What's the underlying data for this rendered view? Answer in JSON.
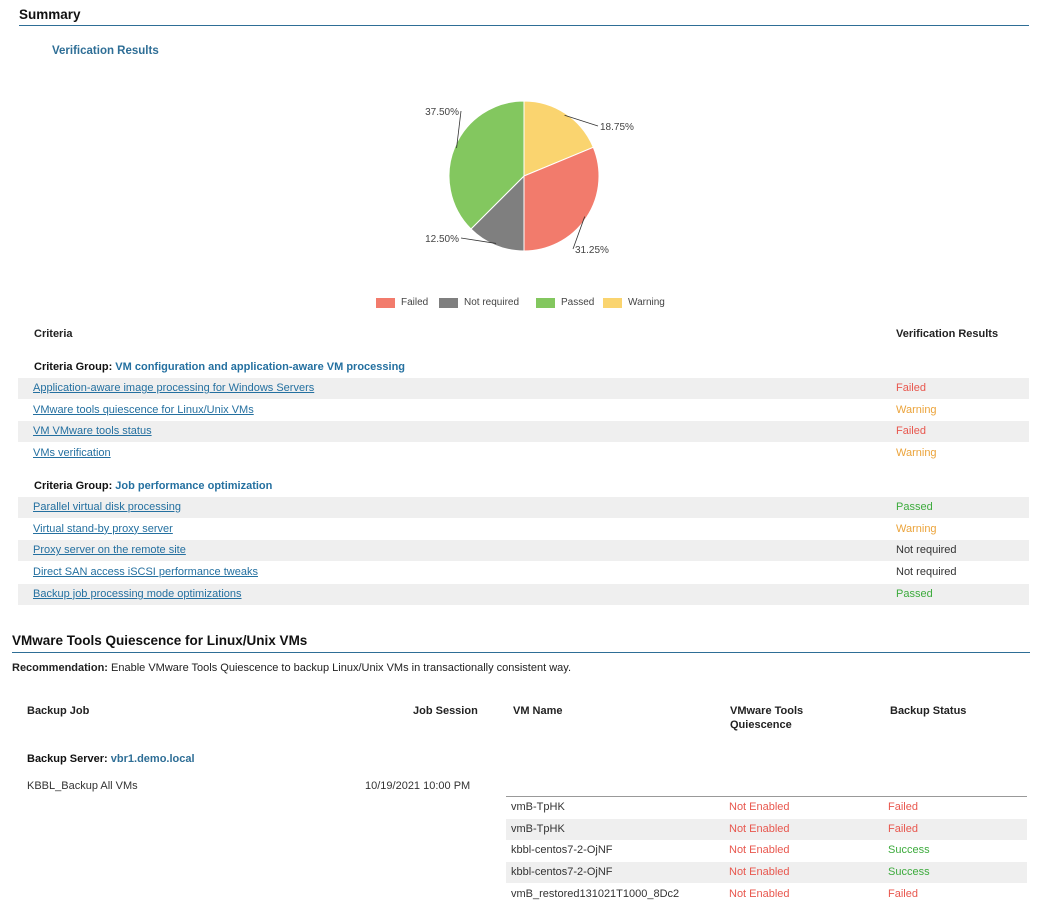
{
  "summary": {
    "title": "Summary",
    "chart_title": "Verification Results"
  },
  "chart_data": {
    "type": "pie",
    "title": "Verification Results",
    "slices": [
      {
        "label": "Warning",
        "value": 18.75,
        "value_label": "18.75%",
        "color": "#fad46f"
      },
      {
        "label": "Failed",
        "value": 31.25,
        "value_label": "31.25%",
        "color": "#f27b6c"
      },
      {
        "label": "Not required",
        "value": 12.5,
        "value_label": "12.50%",
        "color": "#7f7f7f"
      },
      {
        "label": "Passed",
        "value": 37.5,
        "value_label": "37.50%",
        "color": "#83c75f"
      }
    ],
    "legend_order": [
      "Failed",
      "Not required",
      "Passed",
      "Warning"
    ],
    "legend_placement": "bottom"
  },
  "criteria_table": {
    "col_criteria": "Criteria",
    "col_results": "Verification Results",
    "group_prefix": "Criteria Group:",
    "groups": [
      {
        "name": "VM configuration and application-aware VM processing",
        "rows": [
          {
            "criteria": "Application-aware image processing for Windows Servers",
            "result": "Failed"
          },
          {
            "criteria": "VMware tools quiescence for Linux/Unix VMs",
            "result": "Warning"
          },
          {
            "criteria": "VM VMware tools status",
            "result": "Failed"
          },
          {
            "criteria": "VMs verification",
            "result": "Warning"
          }
        ]
      },
      {
        "name": "Job performance optimization",
        "rows": [
          {
            "criteria": "Parallel virtual disk processing",
            "result": "Passed"
          },
          {
            "criteria": "Virtual stand-by proxy server",
            "result": "Warning"
          },
          {
            "criteria": "Proxy server on the remote site",
            "result": "Not required"
          },
          {
            "criteria": "Direct SAN access iSCSI performance tweaks",
            "result": "Not required"
          },
          {
            "criteria": "Backup job processing mode optimizations",
            "result": "Passed"
          }
        ]
      }
    ]
  },
  "quiescence": {
    "title": "VMware Tools Quiescence for Linux/Unix VMs",
    "recommendation_label": "Recommendation:",
    "recommendation_text": "Enable VMware Tools Quiescence to backup Linux/Unix VMs in transactionally consistent way.",
    "cols": {
      "backup_job": "Backup Job",
      "job_session": "Job Session",
      "vm_name": "VM Name",
      "tools_quiescence_1": "VMware Tools",
      "tools_quiescence_2": "Quiescence",
      "backup_status": "Backup Status"
    },
    "server_label": "Backup Server:",
    "server_name": "vbr1.demo.local",
    "job_name": "KBBL_Backup All VMs",
    "job_session": "10/19/2021 10:00 PM",
    "vms": [
      {
        "name": "vmB-TpHK",
        "quiescence": "Not Enabled",
        "status": "Failed"
      },
      {
        "name": "vmB-TpHK",
        "quiescence": "Not Enabled",
        "status": "Failed"
      },
      {
        "name": "kbbl-centos7-2-OjNF",
        "quiescence": "Not Enabled",
        "status": "Success"
      },
      {
        "name": "kbbl-centos7-2-OjNF",
        "quiescence": "Not Enabled",
        "status": "Success"
      },
      {
        "name": "vmB_restored131021T1000_8Dc2",
        "quiescence": "Not Enabled",
        "status": "Failed"
      }
    ]
  }
}
